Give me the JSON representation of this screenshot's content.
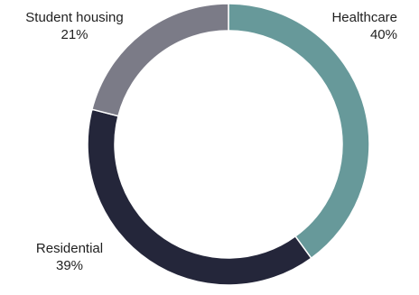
{
  "chart_data": {
    "type": "pie",
    "categories": [
      "Healthcare",
      "Residential",
      "Student housing"
    ],
    "values": [
      40,
      39,
      21
    ],
    "value_labels": [
      "40%",
      "39%",
      "21%"
    ],
    "colors": [
      "#67999a",
      "#24263a",
      "#7b7b87"
    ],
    "donut": true,
    "start_angle_deg": -90,
    "direction": "clockwise",
    "title": ""
  }
}
